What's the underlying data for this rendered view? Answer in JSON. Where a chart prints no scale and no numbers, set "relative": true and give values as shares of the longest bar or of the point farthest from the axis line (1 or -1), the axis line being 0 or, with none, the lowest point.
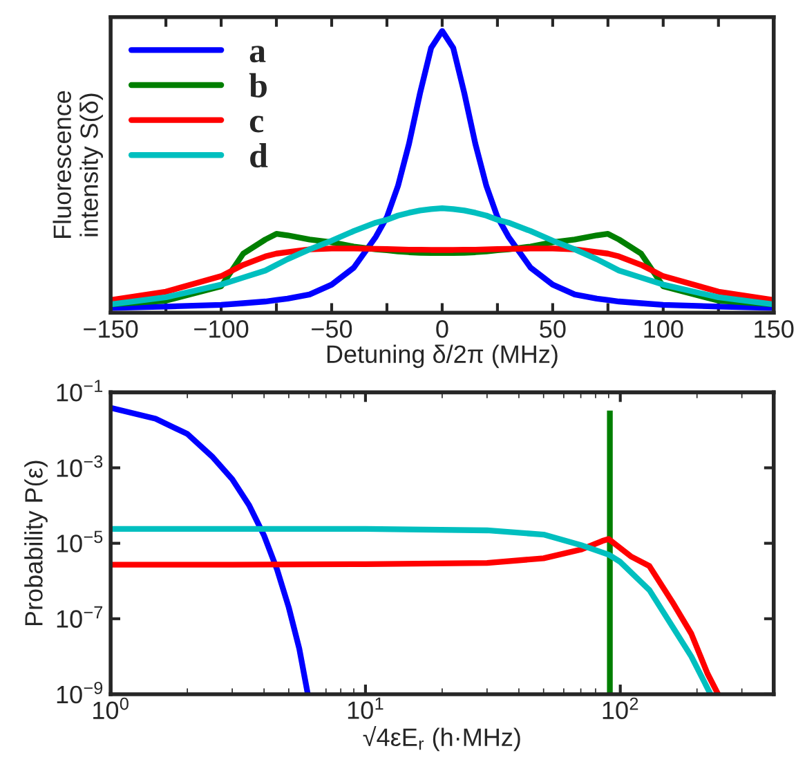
{
  "chart_data": [
    {
      "type": "line",
      "relative": true,
      "xlabel": "Detuning δ/2π (MHz)",
      "ylabel": "Fluorescence\nintensity S(δ)",
      "x": [
        -150,
        -125,
        -100,
        -90,
        -80,
        -75,
        -70,
        -60,
        -50,
        -40,
        -30,
        -25,
        -20,
        -15,
        -10,
        -5,
        0,
        5,
        10,
        15,
        20,
        25,
        30,
        40,
        50,
        60,
        70,
        75,
        80,
        90,
        100,
        125,
        150
      ],
      "xlim": [
        -150,
        150
      ],
      "xticks": [
        -150,
        {
          "value": -125,
          "label": null
        },
        -100,
        {
          "value": -75,
          "label": null
        },
        -50,
        {
          "value": -25,
          "label": null
        },
        0,
        {
          "value": 25,
          "label": null
        },
        50,
        {
          "value": 75,
          "label": null
        },
        100,
        {
          "value": 125,
          "label": null
        },
        150
      ],
      "tick_labels": "x",
      "legend": "top left",
      "grid": false,
      "series": [
        {
          "name": "a",
          "color": "#0000ff",
          "values": [
            0.017,
            0.022,
            0.028,
            0.034,
            0.04,
            0.045,
            0.05,
            0.065,
            0.1,
            0.16,
            0.27,
            0.34,
            0.45,
            0.6,
            0.78,
            0.94,
            1.0,
            0.94,
            0.78,
            0.6,
            0.45,
            0.34,
            0.27,
            0.16,
            0.1,
            0.065,
            0.05,
            0.045,
            0.04,
            0.034,
            0.028,
            0.022,
            0.017
          ]
        },
        {
          "name": "b",
          "color": "#007f00",
          "values": [
            0.03,
            0.043,
            0.094,
            0.21,
            0.26,
            0.28,
            0.275,
            0.26,
            0.25,
            0.235,
            0.225,
            0.222,
            0.218,
            0.215,
            0.213,
            0.212,
            0.212,
            0.212,
            0.213,
            0.215,
            0.218,
            0.222,
            0.225,
            0.235,
            0.25,
            0.26,
            0.275,
            0.28,
            0.26,
            0.21,
            0.094,
            0.043,
            0.03
          ]
        },
        {
          "name": "c",
          "color": "#ff0000",
          "values": [
            0.045,
            0.075,
            0.13,
            0.17,
            0.2,
            0.21,
            0.215,
            0.225,
            0.228,
            0.228,
            0.227,
            0.226,
            0.225,
            0.224,
            0.224,
            0.223,
            0.223,
            0.223,
            0.224,
            0.224,
            0.225,
            0.226,
            0.227,
            0.228,
            0.228,
            0.225,
            0.215,
            0.21,
            0.2,
            0.17,
            0.13,
            0.075,
            0.045
          ]
        },
        {
          "name": "d",
          "color": "#00bfbf",
          "values": [
            0.03,
            0.055,
            0.1,
            0.125,
            0.15,
            0.17,
            0.19,
            0.225,
            0.256,
            0.29,
            0.32,
            0.33,
            0.345,
            0.355,
            0.363,
            0.368,
            0.371,
            0.368,
            0.363,
            0.355,
            0.345,
            0.33,
            0.32,
            0.29,
            0.256,
            0.225,
            0.19,
            0.17,
            0.15,
            0.125,
            0.1,
            0.055,
            0.03
          ]
        }
      ]
    },
    {
      "type": "line",
      "xlabel": "√4εE$_{r}$ (h·MHz)",
      "ylabel": "Probability P(ε)",
      "log": "xy",
      "grid": false,
      "legend": false,
      "xlim": [
        1,
        400
      ],
      "ylim": [
        1e-09,
        0.1
      ],
      "xticks": [
        {
          "value": 1,
          "label": "10$^{0}$"
        },
        {
          "value": 10,
          "label": "10$^{1}$"
        },
        {
          "value": 100,
          "label": "10$^{2}$"
        }
      ],
      "yticks": [
        {
          "value": 1e-09,
          "label": "10$^{−9}$"
        },
        {
          "value": 1e-07,
          "label": "10$^{−7}$"
        },
        {
          "value": 1e-05,
          "label": "10$^{−5}$"
        },
        {
          "value": 0.001,
          "label": "10$^{−3}$"
        },
        {
          "value": 0.1,
          "label": "10$^{−1}$"
        }
      ],
      "series": [
        {
          "color": "#0000ff",
          "x": [
            1,
            1.5,
            2,
            2.5,
            3,
            3.5,
            4,
            4.5,
            5,
            5.5,
            5.94
          ],
          "values": [
            0.039,
            0.02,
            0.0079,
            0.002,
            0.0005,
            0.0001,
            1.6e-05,
            2e-06,
            2e-07,
            1.6e-08,
            1e-09
          ]
        },
        {
          "color": "#007f00",
          "x": [
            91,
            91
          ],
          "values": [
            1e-09,
            0.033
          ]
        },
        {
          "color": "#ff0000",
          "x": [
            1,
            3,
            10,
            30,
            50,
            70,
            85,
            90,
            110,
            130,
            160,
            190,
            220,
            242
          ],
          "values": [
            2.7e-06,
            2.7e-06,
            2.8e-06,
            3e-06,
            4e-06,
            6.8e-06,
            1.15e-05,
            1.3e-05,
            4.5e-06,
            2.5e-06,
            2.8e-07,
            4e-08,
            3.5e-09,
            1e-09
          ]
        },
        {
          "color": "#00bfbf",
          "x": [
            1,
            3,
            10,
            30,
            50,
            70,
            90,
            100,
            130,
            160,
            190,
            226
          ],
          "values": [
            2.4e-05,
            2.4e-05,
            2.4e-05,
            2.2e-05,
            1.7e-05,
            9e-06,
            5e-06,
            3.2e-06,
            5.8e-07,
            6.3e-08,
            1e-08,
            1e-09
          ]
        }
      ]
    }
  ]
}
